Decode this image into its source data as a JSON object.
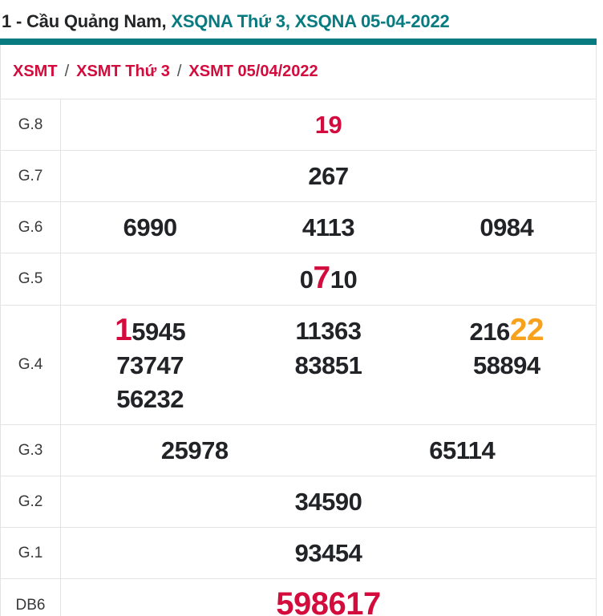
{
  "title": {
    "prefix": "1 - Cầu Quảng Nam, ",
    "highlight": "XSQNA Thứ 3, XSQNA 05-04-2022"
  },
  "breadcrumb": {
    "separator": "/",
    "items": [
      "XSMT",
      "XSMT Thứ 3",
      "XSMT 05/04/2022"
    ]
  },
  "colors": {
    "teal": "#077b80",
    "red": "#d30c3d",
    "orange": "#f8a11c",
    "dark": "#212326",
    "border": "#e3e3e3"
  },
  "table": {
    "rows": [
      {
        "label": "G.8",
        "per_row": 1,
        "values": [
          {
            "parts": [
              {
                "t": "19",
                "color": "red"
              }
            ]
          }
        ]
      },
      {
        "label": "G.7",
        "per_row": 1,
        "values": [
          {
            "parts": [
              {
                "t": "267"
              }
            ]
          }
        ]
      },
      {
        "label": "G.6",
        "per_row": 3,
        "values": [
          {
            "parts": [
              {
                "t": "6990"
              }
            ]
          },
          {
            "parts": [
              {
                "t": "4113"
              }
            ]
          },
          {
            "parts": [
              {
                "t": "0984"
              }
            ]
          }
        ]
      },
      {
        "label": "G.5",
        "per_row": 1,
        "values": [
          {
            "parts": [
              {
                "t": "0"
              },
              {
                "t": "7",
                "color": "red",
                "size": "big"
              },
              {
                "t": "10"
              }
            ]
          }
        ]
      },
      {
        "label": "G.4",
        "per_row": 3,
        "values": [
          {
            "parts": [
              {
                "t": "1",
                "color": "red",
                "size": "big"
              },
              {
                "t": "5945"
              }
            ]
          },
          {
            "parts": [
              {
                "t": "11363"
              }
            ]
          },
          {
            "parts": [
              {
                "t": "216"
              },
              {
                "t": "22",
                "color": "orange",
                "size": "big"
              }
            ]
          },
          {
            "parts": [
              {
                "t": "73747"
              }
            ]
          },
          {
            "parts": [
              {
                "t": "83851"
              }
            ]
          },
          {
            "parts": [
              {
                "t": "58894"
              }
            ]
          },
          {
            "parts": [
              {
                "t": "56232"
              }
            ]
          }
        ]
      },
      {
        "label": "G.3",
        "per_row": 2,
        "values": [
          {
            "parts": [
              {
                "t": "25978"
              }
            ]
          },
          {
            "parts": [
              {
                "t": "65114"
              }
            ]
          }
        ]
      },
      {
        "label": "G.2",
        "per_row": 1,
        "values": [
          {
            "parts": [
              {
                "t": "34590"
              }
            ]
          }
        ]
      },
      {
        "label": "G.1",
        "per_row": 1,
        "values": [
          {
            "parts": [
              {
                "t": "93454"
              }
            ]
          }
        ]
      },
      {
        "label": "DB6",
        "per_row": 1,
        "values": [
          {
            "parts": [
              {
                "t": "598617",
                "color": "red",
                "size": "db"
              }
            ]
          }
        ]
      }
    ]
  }
}
